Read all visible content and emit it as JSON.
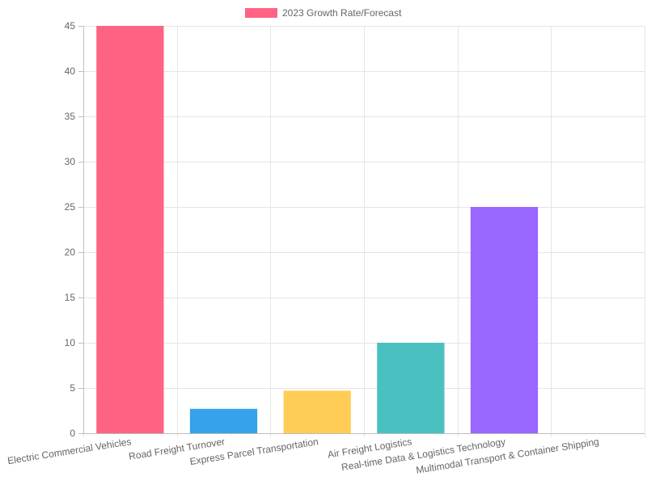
{
  "chart_data": {
    "type": "bar",
    "title": "",
    "xlabel": "",
    "ylabel": "",
    "legend": {
      "position": "top",
      "label": "2023 Growth Rate/Forecast",
      "color": "#ff6384"
    },
    "categories": [
      "Electric Commercial Vehicles",
      "Road Freight Turnover",
      "Express Parcel Transportation",
      "Air Freight Logistics",
      "Real-time Data & Logistics Technology",
      "Multimodal Transport & Container Shipping"
    ],
    "series": [
      {
        "name": "2023 Growth Rate/Forecast",
        "values": [
          45,
          2.7,
          4.7,
          10,
          25,
          0
        ],
        "colors": [
          "#ff6384",
          "#36a2eb",
          "#ffcd56",
          "#4bc0c0",
          "#9966ff",
          "#ff9f40"
        ]
      }
    ],
    "ylim": [
      0,
      45
    ],
    "yticks": [
      0,
      5,
      10,
      15,
      20,
      25,
      30,
      35,
      40,
      45
    ],
    "grid": true
  }
}
